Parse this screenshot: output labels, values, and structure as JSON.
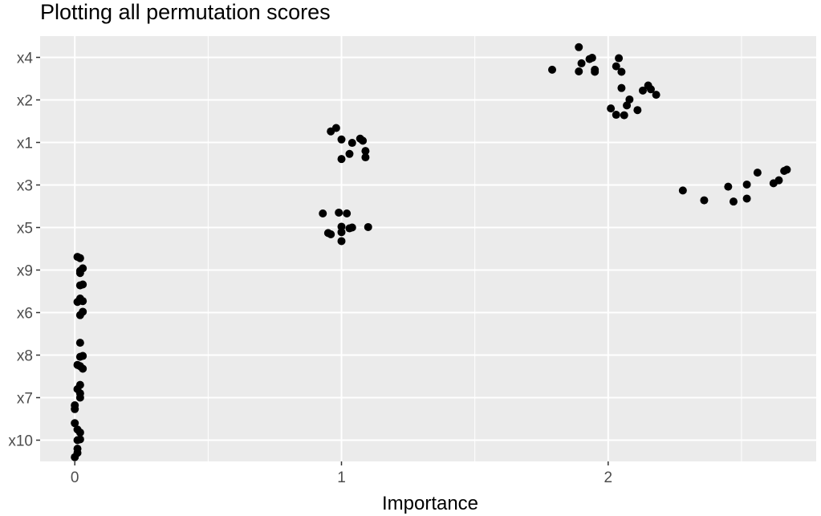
{
  "chart_data": {
    "type": "scatter",
    "title": "Plotting all permutation scores",
    "xlabel": "Importance",
    "ylabel": "",
    "xlim": [
      -0.13,
      2.78
    ],
    "x_ticks": [
      0,
      1,
      2
    ],
    "x_tick_labels": [
      "0",
      "1",
      "2"
    ],
    "y_categories": [
      "x10",
      "x7",
      "x8",
      "x6",
      "x9",
      "x5",
      "x3",
      "x1",
      "x2",
      "x4"
    ],
    "grid": true,
    "panel_background": "#EBEBEB",
    "point_color": "#000000",
    "series": [
      {
        "category": "x4",
        "points": [
          {
            "x": 2.28,
            "y": 4.13
          },
          {
            "x": 2.36,
            "y": 4.36
          },
          {
            "x": 2.45,
            "y": 4.04
          },
          {
            "x": 2.47,
            "y": 4.39
          },
          {
            "x": 2.52,
            "y": 3.99
          },
          {
            "x": 2.52,
            "y": 4.32
          },
          {
            "x": 2.56,
            "y": 3.71
          },
          {
            "x": 2.62,
            "y": 3.96
          },
          {
            "x": 2.64,
            "y": 3.89
          },
          {
            "x": 2.66,
            "y": 3.67
          },
          {
            "x": 2.67,
            "y": 3.64
          }
        ]
      },
      {
        "category": "x2",
        "points": [
          {
            "x": 2.01,
            "y": 2.2
          },
          {
            "x": 2.03,
            "y": 2.35
          },
          {
            "x": 2.06,
            "y": 2.36
          },
          {
            "x": 2.07,
            "y": 2.13
          },
          {
            "x": 2.08,
            "y": 1.99
          },
          {
            "x": 2.11,
            "y": 2.24
          },
          {
            "x": 2.05,
            "y": 1.72
          },
          {
            "x": 2.13,
            "y": 1.78
          },
          {
            "x": 2.15,
            "y": 1.66
          },
          {
            "x": 2.16,
            "y": 1.75
          },
          {
            "x": 2.18,
            "y": 1.88
          }
        ]
      },
      {
        "category": "x1",
        "points": [
          {
            "x": 1.79,
            "y": 1.29
          },
          {
            "x": 1.89,
            "y": 1.33
          },
          {
            "x": 1.9,
            "y": 1.14
          },
          {
            "x": 1.89,
            "y": 0.76
          },
          {
            "x": 1.93,
            "y": 1.04
          },
          {
            "x": 1.94,
            "y": 1.01
          },
          {
            "x": 1.95,
            "y": 1.29
          },
          {
            "x": 1.95,
            "y": 1.34
          },
          {
            "x": 2.03,
            "y": 1.21
          },
          {
            "x": 2.04,
            "y": 1.02
          },
          {
            "x": 2.05,
            "y": 1.34
          }
        ]
      },
      {
        "category": "x3",
        "points": [
          {
            "x": 1.0,
            "y": 3.39
          },
          {
            "x": 1.03,
            "y": 3.27
          },
          {
            "x": 1.09,
            "y": 3.35
          },
          {
            "x": 1.09,
            "y": 3.2
          },
          {
            "x": 1.04,
            "y": 3.01
          },
          {
            "x": 1.0,
            "y": 2.93
          },
          {
            "x": 1.07,
            "y": 2.91
          },
          {
            "x": 1.08,
            "y": 2.96
          },
          {
            "x": 0.96,
            "y": 2.74
          },
          {
            "x": 0.98,
            "y": 2.66
          }
        ]
      },
      {
        "category": "x5",
        "points": [
          {
            "x": 1.0,
            "y": 5.32
          },
          {
            "x": 0.95,
            "y": 5.13
          },
          {
            "x": 0.96,
            "y": 5.16
          },
          {
            "x": 1.0,
            "y": 5.11
          },
          {
            "x": 1.0,
            "y": 4.98
          },
          {
            "x": 1.03,
            "y": 5.02
          },
          {
            "x": 1.04,
            "y": 5.0
          },
          {
            "x": 1.1,
            "y": 4.99
          },
          {
            "x": 0.93,
            "y": 4.67
          },
          {
            "x": 0.99,
            "y": 4.65
          },
          {
            "x": 1.02,
            "y": 4.67
          }
        ]
      },
      {
        "category": "x9",
        "points": [
          {
            "x": 0.02,
            "y": 6.36
          },
          {
            "x": 0.03,
            "y": 6.34
          },
          {
            "x": 0.02,
            "y": 6.07
          },
          {
            "x": 0.03,
            "y": 5.96
          },
          {
            "x": 0.02,
            "y": 5.72
          },
          {
            "x": 0.01,
            "y": 5.69
          },
          {
            "x": 0.02,
            "y": 6.02
          }
        ]
      },
      {
        "category": "x6",
        "points": [
          {
            "x": 0.02,
            "y": 7.06
          },
          {
            "x": 0.03,
            "y": 6.98
          },
          {
            "x": 0.01,
            "y": 6.75
          },
          {
            "x": 0.02,
            "y": 6.72
          },
          {
            "x": 0.03,
            "y": 6.73
          },
          {
            "x": 0.02,
            "y": 6.67
          }
        ]
      },
      {
        "category": "x8",
        "points": [
          {
            "x": 0.03,
            "y": 8.32
          },
          {
            "x": 0.01,
            "y": 8.23
          },
          {
            "x": 0.02,
            "y": 8.26
          },
          {
            "x": 0.02,
            "y": 8.04
          },
          {
            "x": 0.03,
            "y": 8.02
          },
          {
            "x": 0.02,
            "y": 7.71
          }
        ]
      },
      {
        "category": "x7",
        "points": [
          {
            "x": 0.0,
            "y": 9.27
          },
          {
            "x": 0.0,
            "y": 9.18
          },
          {
            "x": 0.02,
            "y": 9.0
          },
          {
            "x": 0.02,
            "y": 8.9
          },
          {
            "x": 0.01,
            "y": 8.8
          },
          {
            "x": 0.02,
            "y": 8.7
          }
        ]
      },
      {
        "category": "x10",
        "points": [
          {
            "x": 0.0,
            "y": 10.4
          },
          {
            "x": 0.01,
            "y": 10.3
          },
          {
            "x": 0.01,
            "y": 10.2
          },
          {
            "x": 0.01,
            "y": 10.0
          },
          {
            "x": 0.02,
            "y": 9.98
          },
          {
            "x": 0.02,
            "y": 9.82
          },
          {
            "x": 0.01,
            "y": 9.75
          },
          {
            "x": 0.0,
            "y": 9.6
          }
        ]
      }
    ]
  }
}
